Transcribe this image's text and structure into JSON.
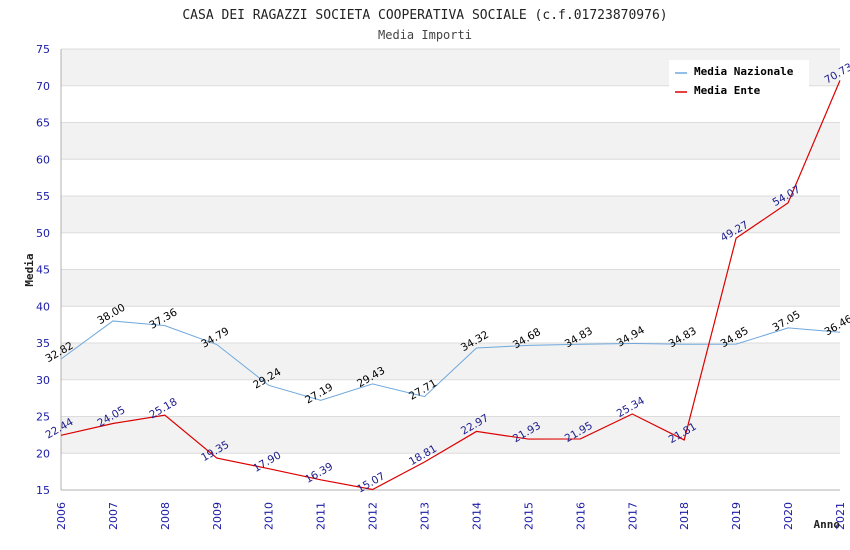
{
  "chart_data": {
    "type": "line",
    "title": "CASA DEI RAGAZZI SOCIETA COOPERATIVA SOCIALE (c.f.01723870976)",
    "subtitle": "Media Importi",
    "xlabel": "Anno",
    "ylabel": "Media",
    "ylim": [
      15,
      75
    ],
    "yticks": [
      15,
      20,
      25,
      30,
      35,
      40,
      45,
      50,
      55,
      60,
      65,
      70,
      75
    ],
    "categories": [
      "2006",
      "2007",
      "2008",
      "2009",
      "2010",
      "2011",
      "2012",
      "2013",
      "2014",
      "2015",
      "2016",
      "2017",
      "2018",
      "2019",
      "2020",
      "2021"
    ],
    "series": [
      {
        "name": "Media Nazionale",
        "color": "#6fa8dc",
        "label_color": "#000000",
        "values": [
          32.82,
          38.0,
          37.36,
          34.79,
          29.24,
          27.19,
          29.43,
          27.71,
          34.32,
          34.68,
          34.83,
          34.94,
          34.83,
          34.85,
          37.05,
          36.46
        ],
        "labels": [
          "32.82",
          "38.00",
          "37.36",
          "34.79",
          "29.24",
          "27.19",
          "29.43",
          "27.71",
          "34.32",
          "34.68",
          "34.83",
          "34.94",
          "34.83",
          "34.85",
          "37.05",
          "36.46"
        ]
      },
      {
        "name": "Media Ente",
        "color": "#dd0000",
        "label_color": "#1a1a8c",
        "values": [
          22.44,
          24.05,
          25.18,
          19.35,
          17.9,
          16.39,
          15.07,
          18.81,
          22.97,
          21.93,
          21.95,
          25.34,
          21.81,
          49.27,
          54.07,
          70.73
        ],
        "labels": [
          "22.44",
          "24.05",
          "25.18",
          "19.35",
          "17.90",
          "16.39",
          "15.07",
          "18.81",
          "22.97",
          "21.93",
          "21.95",
          "25.34",
          "21.81",
          "49.27",
          "54.07",
          "70.73"
        ]
      }
    ],
    "grid": true,
    "legend": "top-right"
  }
}
